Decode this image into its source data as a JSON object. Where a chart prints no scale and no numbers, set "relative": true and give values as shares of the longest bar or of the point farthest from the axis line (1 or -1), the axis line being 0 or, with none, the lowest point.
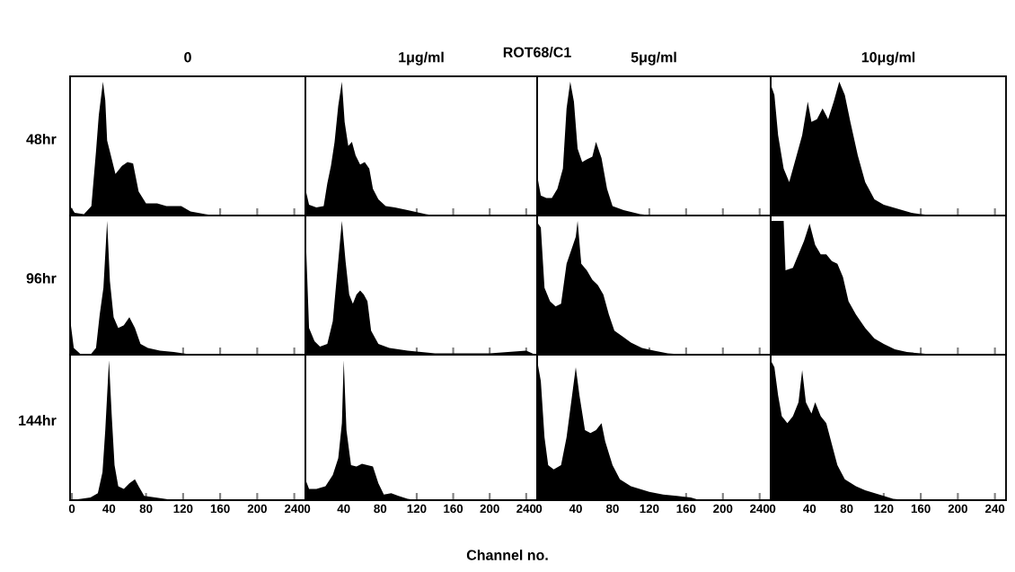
{
  "chart_data": [
    {
      "type": "area",
      "relative": true,
      "title": "0",
      "ylabel": "48hr",
      "annotations": [
        "ROT68/C1"
      ],
      "color": "#000000",
      "xlim": [
        -2,
        252
      ],
      "xticks": [
        0,
        40,
        80,
        120,
        160,
        200,
        240
      ],
      "tick_labels": false,
      "x": [
        -2,
        3,
        13,
        21,
        26,
        29,
        33.5,
        36,
        38,
        42,
        47,
        54,
        60,
        66,
        72,
        80,
        92,
        102,
        118,
        128,
        144,
        154,
        250
      ],
      "values": [
        0.07,
        0.02,
        0.01,
        0.07,
        0.48,
        0.75,
        1.0,
        0.86,
        0.56,
        0.45,
        0.31,
        0.37,
        0.4,
        0.39,
        0.18,
        0.09,
        0.09,
        0.07,
        0.07,
        0.03,
        0.01,
        0,
        0
      ]
    },
    {
      "type": "area",
      "relative": true,
      "title": "1μg/ml",
      "color": "#000000",
      "xlim": [
        -2,
        252
      ],
      "xticks": [
        0,
        40,
        80,
        120,
        160,
        200,
        240
      ],
      "tick_labels": false,
      "x": [
        -2,
        2,
        10,
        18,
        22,
        26,
        30,
        34,
        38,
        41,
        45,
        49,
        53,
        58,
        63,
        68,
        72,
        78,
        86,
        96,
        110,
        130,
        140,
        250
      ],
      "values": [
        0.2,
        0.08,
        0.06,
        0.07,
        0.24,
        0.37,
        0.55,
        0.82,
        1.0,
        0.7,
        0.52,
        0.55,
        0.45,
        0.38,
        0.4,
        0.35,
        0.2,
        0.12,
        0.07,
        0.06,
        0.04,
        0.01,
        0,
        0
      ]
    },
    {
      "type": "area",
      "relative": true,
      "title": "5μg/ml",
      "color": "#000000",
      "xlim": [
        -2,
        252
      ],
      "xticks": [
        0,
        40,
        80,
        120,
        160,
        200,
        240
      ],
      "tick_labels": false,
      "x": [
        -2,
        2,
        8,
        14,
        20,
        26,
        30,
        34,
        38,
        42,
        47,
        52,
        58,
        62,
        68,
        74,
        80,
        92,
        110,
        125,
        250
      ],
      "values": [
        0.3,
        0.15,
        0.13,
        0.13,
        0.2,
        0.35,
        0.8,
        1.0,
        0.85,
        0.5,
        0.4,
        0.42,
        0.44,
        0.55,
        0.43,
        0.2,
        0.07,
        0.04,
        0.01,
        0,
        0
      ]
    },
    {
      "type": "area",
      "relative": true,
      "title": "10μg/ml",
      "color": "#000000",
      "xlim": [
        -2,
        252
      ],
      "xticks": [
        0,
        40,
        80,
        120,
        160,
        200,
        240
      ],
      "tick_labels": false,
      "x": [
        -2,
        2,
        6,
        12,
        18,
        26,
        32,
        38,
        42,
        48,
        54,
        60,
        66,
        72,
        78,
        84,
        92,
        100,
        110,
        120,
        135,
        150,
        160,
        175,
        250
      ],
      "values": [
        0.98,
        0.9,
        0.6,
        0.35,
        0.25,
        0.45,
        0.6,
        0.85,
        0.7,
        0.72,
        0.8,
        0.72,
        0.85,
        1.0,
        0.9,
        0.7,
        0.45,
        0.25,
        0.12,
        0.08,
        0.05,
        0.02,
        0.01,
        0,
        0
      ]
    },
    {
      "type": "area",
      "relative": true,
      "ylabel": "96hr",
      "color": "#000000",
      "xlim": [
        -2,
        252
      ],
      "xticks": [
        0,
        40,
        80,
        120,
        160,
        200,
        240
      ],
      "tick_labels": false,
      "x": [
        -2,
        2,
        10,
        20,
        26,
        30,
        34,
        38,
        41,
        45,
        50,
        56,
        62,
        68,
        74,
        82,
        95,
        110,
        130,
        250
      ],
      "values": [
        0.27,
        0.05,
        0,
        0,
        0.05,
        0.3,
        0.5,
        1.0,
        0.55,
        0.28,
        0.2,
        0.22,
        0.28,
        0.2,
        0.08,
        0.05,
        0.03,
        0.02,
        0,
        0
      ]
    },
    {
      "type": "area",
      "relative": true,
      "color": "#000000",
      "xlim": [
        -2,
        252
      ],
      "xticks": [
        0,
        40,
        80,
        120,
        160,
        200,
        240
      ],
      "tick_labels": false,
      "x": [
        -2,
        2,
        8,
        14,
        22,
        28,
        32,
        38,
        42,
        46,
        50,
        54,
        58,
        62,
        66,
        70,
        78,
        90,
        110,
        140,
        200,
        240,
        250
      ],
      "values": [
        0.95,
        0.2,
        0.1,
        0.06,
        0.08,
        0.25,
        0.55,
        1.0,
        0.7,
        0.45,
        0.38,
        0.45,
        0.48,
        0.45,
        0.4,
        0.18,
        0.08,
        0.05,
        0.03,
        0.01,
        0.01,
        0.03,
        0
      ]
    },
    {
      "type": "area",
      "relative": true,
      "color": "#000000",
      "xlim": [
        -2,
        252
      ],
      "xticks": [
        0,
        40,
        80,
        120,
        160,
        200,
        240
      ],
      "tick_labels": false,
      "x": [
        -2,
        2,
        6,
        12,
        18,
        24,
        30,
        36,
        40,
        42,
        46,
        52,
        58,
        64,
        70,
        76,
        82,
        92,
        100,
        112,
        125,
        140,
        160,
        250
      ],
      "values": [
        0.99,
        0.95,
        0.5,
        0.4,
        0.36,
        0.38,
        0.68,
        0.8,
        0.88,
        1.0,
        0.68,
        0.63,
        0.56,
        0.52,
        0.45,
        0.3,
        0.18,
        0.13,
        0.09,
        0.05,
        0.03,
        0.01,
        0,
        0
      ]
    },
    {
      "type": "area",
      "relative": true,
      "color": "#000000",
      "xlim": [
        -2,
        252
      ],
      "xticks": [
        0,
        40,
        80,
        120,
        160,
        200,
        240
      ],
      "tick_labels": false,
      "x": [
        -2,
        12,
        14,
        22,
        28,
        34,
        40,
        46,
        52,
        58,
        64,
        70,
        76,
        82,
        90,
        100,
        110,
        120,
        132,
        145,
        160,
        175,
        250
      ],
      "values": [
        1.0,
        1.0,
        0.63,
        0.65,
        0.75,
        0.85,
        0.98,
        0.82,
        0.75,
        0.75,
        0.7,
        0.68,
        0.58,
        0.4,
        0.3,
        0.2,
        0.12,
        0.08,
        0.04,
        0.02,
        0.01,
        0,
        0
      ]
    },
    {
      "type": "area",
      "relative": true,
      "ylabel": "144hr",
      "color": "#000000",
      "xlim": [
        -2,
        252
      ],
      "xticks": [
        0,
        40,
        80,
        120,
        160,
        200,
        240
      ],
      "tick_labels": "x",
      "x": [
        -2,
        10,
        20,
        28,
        33,
        36,
        40,
        43,
        46,
        50,
        56,
        62,
        68,
        72,
        78,
        90,
        100,
        110,
        250
      ],
      "values": [
        0,
        0.01,
        0.02,
        0.05,
        0.2,
        0.5,
        1.0,
        0.6,
        0.25,
        0.1,
        0.08,
        0.12,
        0.15,
        0.1,
        0.03,
        0.02,
        0.01,
        0,
        0
      ]
    },
    {
      "type": "area",
      "relative": true,
      "annotations": [
        "Channel no."
      ],
      "color": "#000000",
      "xlim": [
        -2,
        252
      ],
      "xticks": [
        0,
        40,
        80,
        120,
        160,
        200,
        240
      ],
      "tick_labels": "x",
      "x": [
        -2,
        2,
        10,
        20,
        28,
        34,
        38,
        40,
        43,
        48,
        54,
        60,
        66,
        72,
        78,
        84,
        92,
        100,
        110,
        120,
        250
      ],
      "values": [
        0.15,
        0.08,
        0.08,
        0.1,
        0.18,
        0.3,
        0.55,
        1.0,
        0.5,
        0.25,
        0.24,
        0.26,
        0.25,
        0.24,
        0.12,
        0.04,
        0.05,
        0.03,
        0.01,
        0,
        0
      ]
    },
    {
      "type": "area",
      "relative": true,
      "color": "#000000",
      "xlim": [
        -2,
        252
      ],
      "xticks": [
        0,
        40,
        80,
        120,
        160,
        200,
        240
      ],
      "tick_labels": "x",
      "x": [
        -2,
        2,
        6,
        10,
        16,
        24,
        30,
        36,
        40,
        44,
        50,
        56,
        62,
        68,
        72,
        80,
        88,
        100,
        110,
        120,
        135,
        150,
        165,
        175,
        250
      ],
      "values": [
        1.0,
        0.85,
        0.45,
        0.25,
        0.22,
        0.25,
        0.45,
        0.75,
        0.95,
        0.75,
        0.5,
        0.48,
        0.5,
        0.55,
        0.42,
        0.25,
        0.15,
        0.1,
        0.08,
        0.06,
        0.04,
        0.03,
        0.02,
        0,
        0
      ]
    },
    {
      "type": "area",
      "relative": true,
      "color": "#000000",
      "xlim": [
        -2,
        252
      ],
      "xticks": [
        0,
        40,
        80,
        120,
        160,
        200,
        240
      ],
      "tick_labels": "x",
      "x": [
        -2,
        2,
        6,
        10,
        16,
        22,
        28,
        32,
        36,
        42,
        46,
        52,
        58,
        64,
        70,
        78,
        90,
        100,
        110,
        120,
        130,
        145,
        250
      ],
      "values": [
        1.0,
        0.95,
        0.75,
        0.6,
        0.55,
        0.6,
        0.7,
        0.93,
        0.7,
        0.62,
        0.7,
        0.6,
        0.55,
        0.4,
        0.25,
        0.15,
        0.1,
        0.07,
        0.05,
        0.03,
        0.01,
        0,
        0
      ]
    }
  ]
}
